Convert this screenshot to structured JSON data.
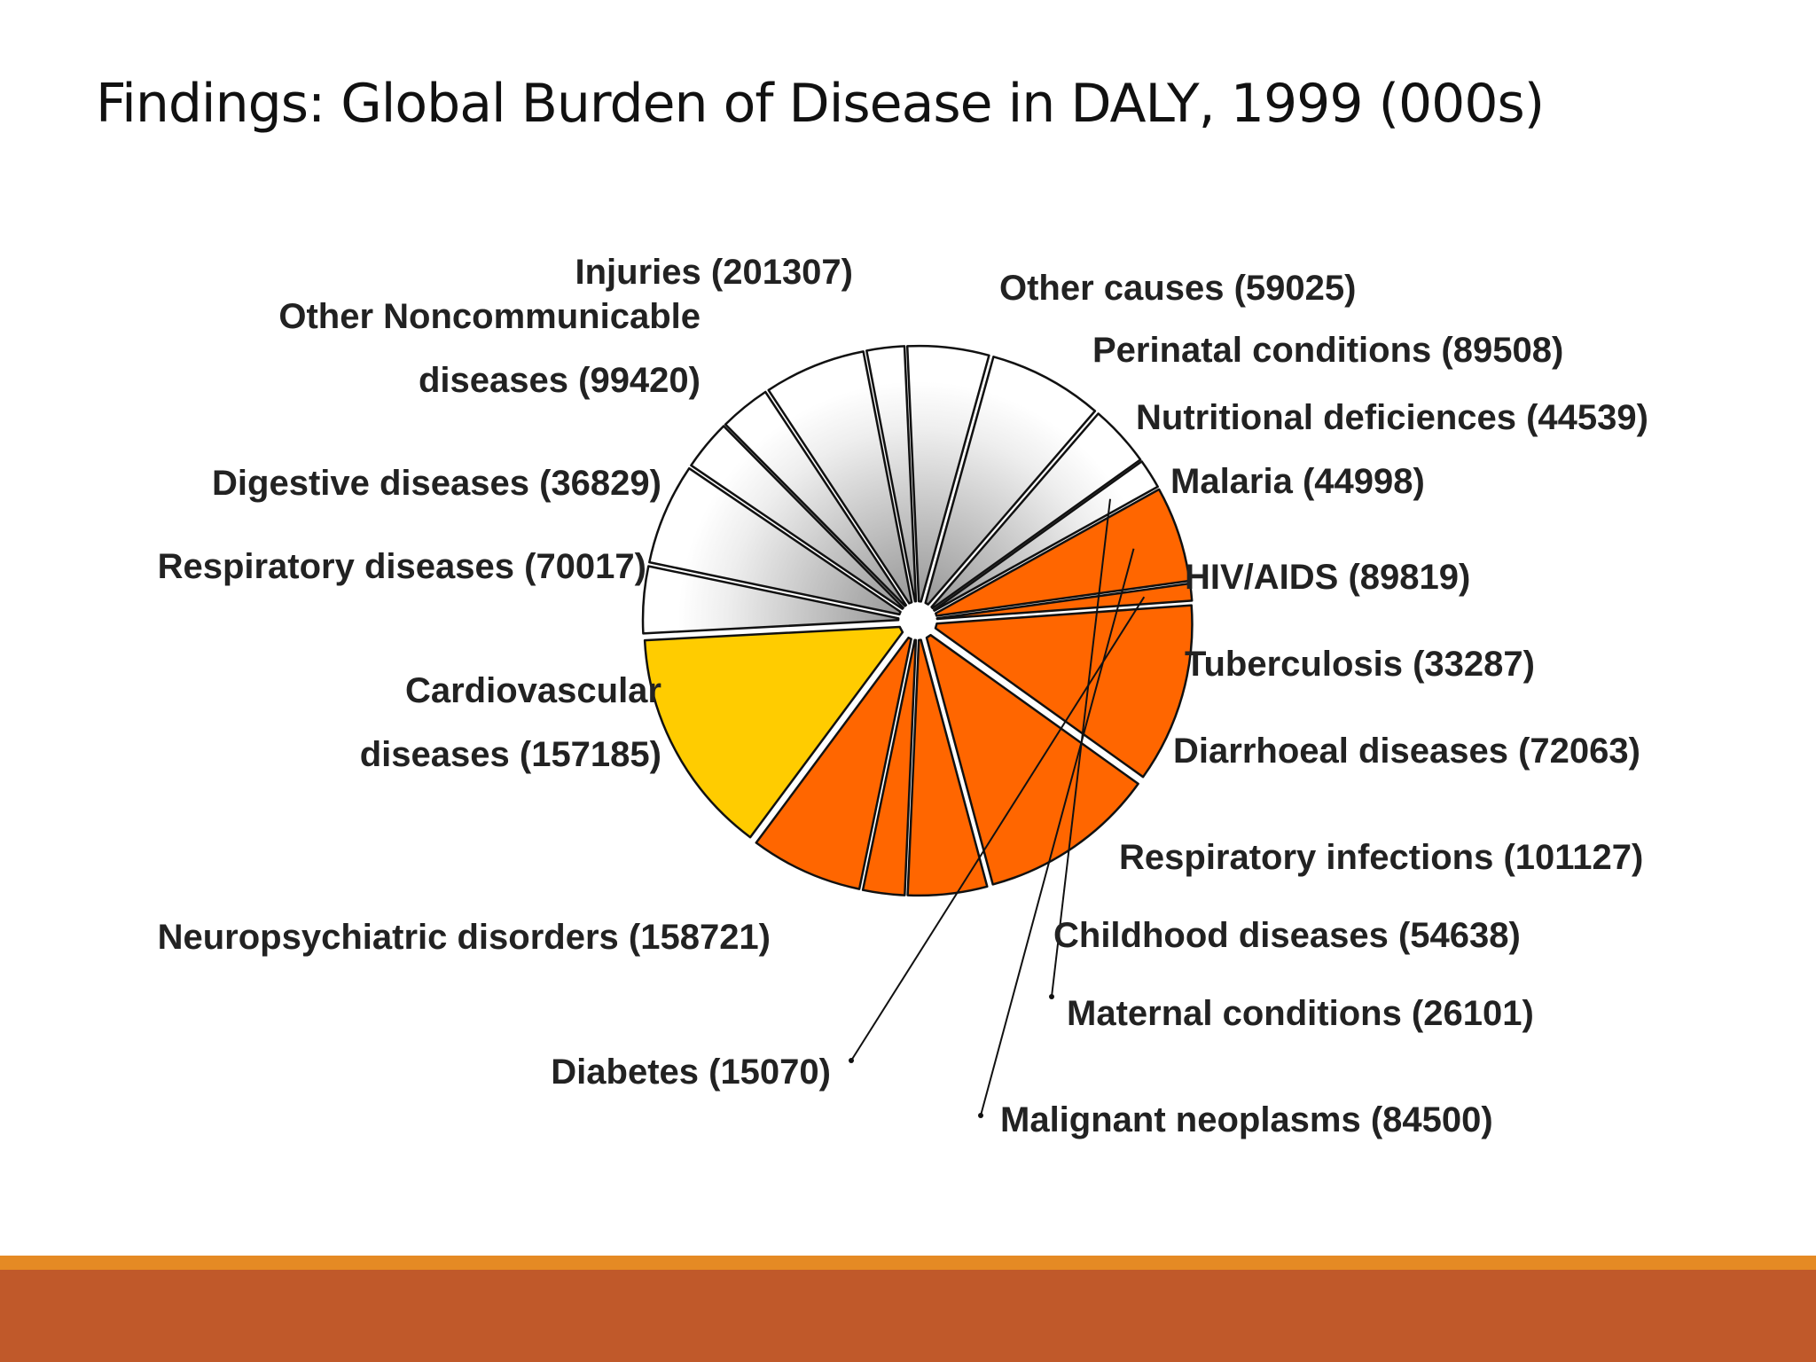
{
  "slide": {
    "title": "Findings: Global Burden of Disease in DALY, 1999 (000s)"
  },
  "colors": {
    "noncommunicable": "#ff6600",
    "injuries": "#ffcc00",
    "communicable": "#d9d9d9",
    "footer_band": "#c0592a",
    "footer_line": "#e58a24"
  },
  "chart_data": {
    "type": "pie",
    "title": "Findings: Global Burden of Disease in DALY, 1999 (000s)",
    "unit": "000s",
    "slices": [
      {
        "label": "Other causes (59025)",
        "category": "Other causes",
        "value": 59025,
        "group": "communicable"
      },
      {
        "label": "Perinatal conditions (89508)",
        "category": "Perinatal conditions",
        "value": 89508,
        "group": "communicable"
      },
      {
        "label": "Nutritional deficiences (44539)",
        "category": "Nutritional deficiences",
        "value": 44539,
        "group": "communicable"
      },
      {
        "label": "Malaria (44998)",
        "category": "Malaria",
        "value": 44998,
        "group": "communicable"
      },
      {
        "label": "HIV/AIDS (89819)",
        "category": "HIV/AIDS",
        "value": 89819,
        "group": "communicable"
      },
      {
        "label": "Tuberculosis (33287)",
        "category": "Tuberculosis",
        "value": 33287,
        "group": "communicable"
      },
      {
        "label": "Diarrhoeal diseases (72063)",
        "category": "Diarrhoeal diseases",
        "value": 72063,
        "group": "communicable"
      },
      {
        "label": "Respiratory infections (101127)",
        "category": "Respiratory infections",
        "value": 101127,
        "group": "communicable"
      },
      {
        "label": "Childhood diseases (54638)",
        "category": "Childhood diseases",
        "value": 54638,
        "group": "communicable"
      },
      {
        "label": "Maternal conditions (26101)",
        "category": "Maternal conditions",
        "value": 26101,
        "group": "communicable"
      },
      {
        "label": "Malignant  neoplasms (84500)",
        "category": "Malignant neoplasms",
        "value": 84500,
        "group": "noncommunicable"
      },
      {
        "label": "Diabetes (15070)",
        "category": "Diabetes",
        "value": 15070,
        "group": "noncommunicable"
      },
      {
        "label": "Neuropsychiatric disorders (158721)",
        "category": "Neuropsychiatric disorders",
        "value": 158721,
        "group": "noncommunicable"
      },
      {
        "label": "Cardiovascular diseases (157185)",
        "category": "Cardiovascular diseases",
        "value": 157185,
        "group": "noncommunicable"
      },
      {
        "label": "Respiratory diseases (70017)",
        "category": "Respiratory diseases",
        "value": 70017,
        "group": "noncommunicable"
      },
      {
        "label": "Digestive diseases (36829)",
        "category": "Digestive diseases",
        "value": 36829,
        "group": "noncommunicable"
      },
      {
        "label": "Other Noncommunicable diseases (99420)",
        "category": "Other Noncommunicable diseases",
        "value": 99420,
        "group": "noncommunicable"
      },
      {
        "label": "Injuries (201307)",
        "category": "Injuries",
        "value": 201307,
        "group": "injuries"
      }
    ]
  }
}
